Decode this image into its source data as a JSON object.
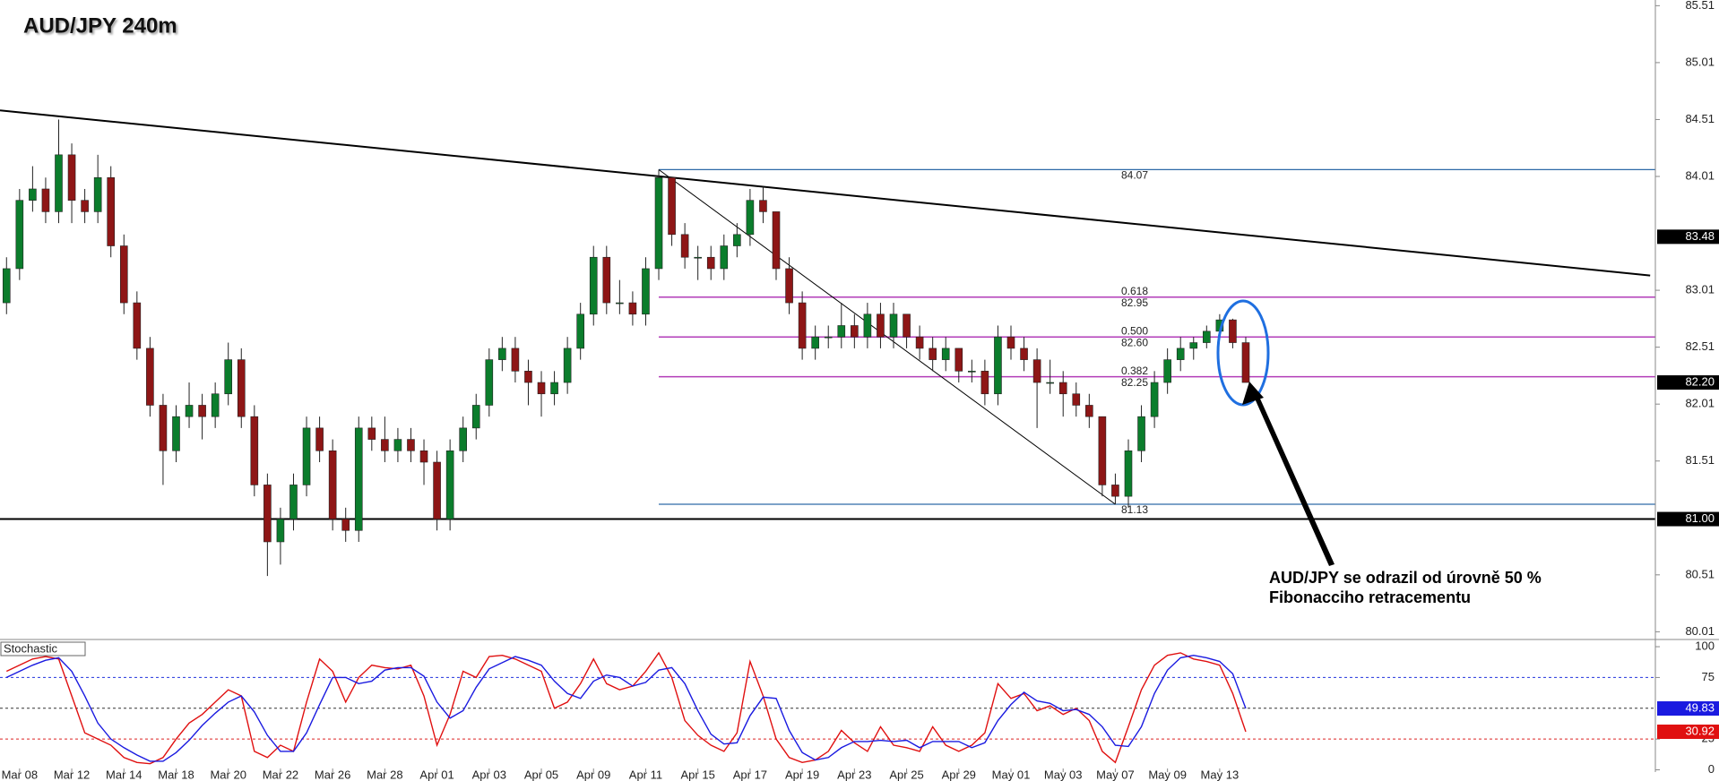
{
  "chart_data": [
    {
      "type": "candlestick",
      "title": "AUD/JPY 240m",
      "open": [
        82.9,
        83.2,
        83.8,
        83.9,
        83.7,
        84.2,
        83.8,
        83.7,
        84.0,
        83.4,
        82.9,
        82.5,
        82.0,
        81.6,
        81.9,
        82.0,
        81.9,
        82.1,
        82.4,
        81.9,
        81.3,
        80.8,
        81.0,
        81.3,
        81.8,
        81.6,
        81.0,
        80.9,
        81.8,
        81.7,
        81.6,
        81.7,
        81.6,
        81.5,
        81.0,
        81.6,
        81.8,
        82.0,
        82.4,
        82.5,
        82.3,
        82.2,
        82.1,
        82.2,
        82.5,
        82.8,
        83.3,
        82.9,
        82.9,
        82.8,
        83.2,
        84.0,
        83.5,
        83.3,
        83.3,
        83.2,
        83.4,
        83.5,
        83.8,
        83.7,
        83.2,
        82.9,
        82.5,
        82.6,
        82.6,
        82.7,
        82.6,
        82.8,
        82.6,
        82.8,
        82.6,
        82.5,
        82.4,
        82.5,
        82.3,
        82.3,
        82.1,
        82.6,
        82.5,
        82.4,
        82.2,
        82.2,
        82.1,
        82.0,
        81.9,
        81.3,
        81.2,
        81.6,
        81.9,
        82.2,
        82.4,
        82.5,
        82.55,
        82.65,
        82.75,
        82.55
      ],
      "high": [
        83.3,
        83.9,
        84.1,
        84.0,
        84.51,
        84.3,
        83.9,
        84.2,
        84.1,
        83.5,
        83.0,
        82.6,
        82.1,
        82.0,
        82.2,
        82.1,
        82.2,
        82.55,
        82.5,
        82.0,
        81.4,
        81.1,
        81.4,
        81.9,
        81.9,
        81.7,
        81.1,
        81.9,
        81.9,
        81.9,
        81.8,
        81.8,
        81.7,
        81.6,
        81.7,
        81.9,
        82.1,
        82.5,
        82.6,
        82.6,
        82.4,
        82.3,
        82.3,
        82.6,
        82.9,
        83.4,
        83.4,
        83.1,
        83.0,
        83.3,
        84.07,
        84.0,
        83.6,
        83.4,
        83.4,
        83.5,
        83.6,
        83.9,
        83.92,
        83.7,
        83.3,
        83.0,
        82.7,
        82.7,
        82.9,
        82.8,
        82.9,
        82.9,
        82.9,
        82.8,
        82.7,
        82.6,
        82.6,
        82.5,
        82.4,
        82.4,
        82.7,
        82.7,
        82.6,
        82.5,
        82.4,
        82.3,
        82.2,
        82.1,
        81.9,
        81.4,
        81.7,
        82.0,
        82.3,
        82.5,
        82.6,
        82.6,
        82.7,
        82.8,
        82.76,
        82.6
      ],
      "low": [
        82.8,
        83.1,
        83.7,
        83.6,
        83.6,
        83.6,
        83.6,
        83.6,
        83.3,
        82.8,
        82.4,
        81.9,
        81.3,
        81.5,
        81.8,
        81.7,
        81.8,
        82.0,
        81.8,
        81.2,
        80.5,
        80.6,
        80.9,
        81.2,
        81.5,
        80.9,
        80.8,
        80.8,
        81.6,
        81.5,
        81.5,
        81.5,
        81.3,
        80.9,
        80.9,
        81.5,
        81.7,
        81.9,
        82.3,
        82.2,
        82.0,
        81.9,
        82.0,
        82.1,
        82.4,
        82.7,
        82.8,
        82.8,
        82.7,
        82.7,
        83.1,
        83.4,
        83.2,
        83.1,
        83.1,
        83.1,
        83.3,
        83.4,
        83.6,
        83.1,
        82.8,
        82.4,
        82.4,
        82.5,
        82.5,
        82.5,
        82.5,
        82.5,
        82.5,
        82.5,
        82.4,
        82.3,
        82.3,
        82.2,
        82.2,
        82.0,
        82.0,
        82.4,
        82.3,
        81.8,
        82.1,
        81.9,
        81.9,
        81.8,
        81.2,
        81.13,
        81.1,
        81.5,
        81.8,
        82.1,
        82.3,
        82.4,
        82.5,
        82.6,
        82.5,
        82.2
      ],
      "close": [
        83.2,
        83.8,
        83.9,
        83.7,
        84.2,
        83.8,
        83.7,
        84.0,
        83.4,
        82.9,
        82.5,
        82.0,
        81.6,
        81.9,
        82.0,
        81.9,
        82.1,
        82.4,
        81.9,
        81.3,
        80.8,
        81.0,
        81.3,
        81.8,
        81.6,
        81.0,
        80.9,
        81.8,
        81.7,
        81.6,
        81.7,
        81.6,
        81.5,
        81.0,
        81.6,
        81.8,
        82.0,
        82.4,
        82.5,
        82.3,
        82.2,
        82.1,
        82.2,
        82.5,
        82.8,
        83.3,
        82.9,
        82.9,
        82.8,
        83.2,
        84.0,
        83.5,
        83.3,
        83.3,
        83.2,
        83.4,
        83.5,
        83.8,
        83.7,
        83.2,
        82.9,
        82.5,
        82.6,
        82.6,
        82.7,
        82.6,
        82.8,
        82.6,
        82.8,
        82.6,
        82.5,
        82.4,
        82.5,
        82.3,
        82.3,
        82.1,
        82.6,
        82.5,
        82.4,
        82.2,
        82.2,
        82.1,
        82.0,
        81.9,
        81.3,
        81.2,
        81.6,
        81.9,
        82.2,
        82.4,
        82.5,
        82.55,
        82.65,
        82.75,
        82.55,
        82.2
      ],
      "up_color": "#0b7d2c",
      "down_color": "#8e1616",
      "wick_color": "#222222",
      "xlim": [
        -0.5,
        126.4
      ],
      "ylim": [
        79.95,
        85.56
      ],
      "yticks": [
        80.01,
        80.51,
        81.51,
        82.01,
        82.51,
        83.01,
        84.01,
        84.51,
        85.01,
        85.51
      ],
      "trendlines": [
        {
          "x": [
            -0.5,
            126
          ],
          "y": [
            84.59,
            83.14
          ],
          "color": "#000000",
          "width": 2
        },
        {
          "x": [
            50,
            85
          ],
          "y": [
            84.07,
            81.13
          ],
          "color": "#000000",
          "width": 1
        }
      ],
      "price_markers": [
        {
          "value": 83.48,
          "color": "#000000"
        },
        {
          "value": 81,
          "label": "81.00",
          "color": "#000000",
          "line": true
        },
        {
          "value": 82.2,
          "label": "82.20",
          "color": "#000000"
        }
      ],
      "fibonacci": {
        "x_start": 50,
        "high": 84.07,
        "low": 81.13,
        "edge_color": "#2e6aa8",
        "level_color": "#b23cb8",
        "levels": [
          {
            "ratio": "0.618",
            "value": 82.95
          },
          {
            "ratio": "0.500",
            "value": {
              "value": 82.6,
              "label": "82.60"
            }
          },
          {
            "ratio": "0.382",
            "value": 82.25
          }
        ]
      },
      "annotation": [
        "AUD/JPY se odrazil od úrovně 50 %",
        "Fibonacciho retracementu"
      ]
    },
    {
      "type": "line",
      "title": "Stochastic",
      "xlim": [
        -0.5,
        126.4
      ],
      "ylim": [
        -1.8,
        104.4
      ],
      "yticks": [
        0,
        25,
        75,
        100
      ],
      "xticks": [
        {
          "value": 1,
          "label": "Mar 08"
        },
        {
          "value": 5,
          "label": "Mar 12"
        },
        {
          "value": 9,
          "label": "Mar 14"
        },
        {
          "value": 13,
          "label": "Mar 18"
        },
        {
          "value": 17,
          "label": "Mar 20"
        },
        {
          "value": 21,
          "label": "Mar 22"
        },
        {
          "value": 25,
          "label": "Mar 26"
        },
        {
          "value": 29,
          "label": "Mar 28"
        },
        {
          "value": 33,
          "label": "Apr 01"
        },
        {
          "value": 37,
          "label": "Apr 03"
        },
        {
          "value": 41,
          "label": "Apr 05"
        },
        {
          "value": 45,
          "label": "Apr 09"
        },
        {
          "value": 49,
          "label": "Apr 11"
        },
        {
          "value": 53,
          "label": "Apr 15"
        },
        {
          "value": 57,
          "label": "Apr 17"
        },
        {
          "value": 61,
          "label": "Apr 19"
        },
        {
          "value": 65,
          "label": "Apr 23"
        },
        {
          "value": 69,
          "label": "Apr 25"
        },
        {
          "value": 73,
          "label": "Apr 29"
        },
        {
          "value": 77,
          "label": "May 01"
        },
        {
          "value": 81,
          "label": "May 03"
        },
        {
          "value": 85,
          "label": "May 07"
        },
        {
          "value": 89,
          "label": "May 09"
        },
        {
          "value": 93,
          "label": "May 13"
        }
      ],
      "level_lines": [
        {
          "value": 75,
          "color": "#2233dd"
        },
        {
          "value": 50,
          "color": "#333333"
        },
        {
          "value": 25,
          "color": "#dd2222"
        }
      ],
      "series": [
        {
          "color": "#e01010",
          "values": [
            80,
            85,
            90,
            92,
            90,
            60,
            30,
            25,
            20,
            10,
            6,
            5,
            10,
            25,
            38,
            45,
            55,
            65,
            60,
            15,
            10,
            20,
            15,
            55,
            90,
            80,
            55,
            75,
            85,
            83,
            82,
            85,
            60,
            20,
            45,
            80,
            75,
            92,
            93,
            90,
            85,
            80,
            50,
            55,
            70,
            90,
            70,
            65,
            68,
            80,
            95,
            75,
            40,
            28,
            20,
            15,
            30,
            88,
            60,
            25,
            10,
            6,
            8,
            15,
            32,
            22,
            15,
            35,
            20,
            18,
            15,
            35,
            20,
            15,
            20,
            30,
            70,
            58,
            62,
            48,
            52,
            45,
            50,
            40,
            15,
            6,
            35,
            65,
            85,
            93,
            95,
            90,
            88,
            85,
            62,
            30.92
          ]
        },
        {
          "color": "#1a1ae0",
          "values": [
            75,
            80,
            85,
            89,
            91,
            80,
            60,
            38,
            25,
            18,
            12,
            7,
            7,
            14,
            24,
            36,
            46,
            55,
            60,
            47,
            28,
            15,
            15,
            30,
            53,
            75,
            75,
            70,
            72,
            81,
            83,
            83,
            76,
            55,
            42,
            48,
            67,
            82,
            87,
            92,
            89,
            85,
            72,
            62,
            58,
            72,
            77,
            75,
            68,
            71,
            81,
            83,
            70,
            48,
            29,
            21,
            22,
            44,
            59,
            58,
            32,
            14,
            8,
            10,
            18,
            23,
            23,
            24,
            23,
            24,
            18,
            23,
            23,
            23,
            18,
            22,
            40,
            53,
            63,
            56,
            54,
            48,
            49,
            45,
            35,
            20,
            19,
            35,
            62,
            81,
            91,
            93,
            91,
            88,
            78,
            49.83
          ]
        }
      ]
    }
  ]
}
